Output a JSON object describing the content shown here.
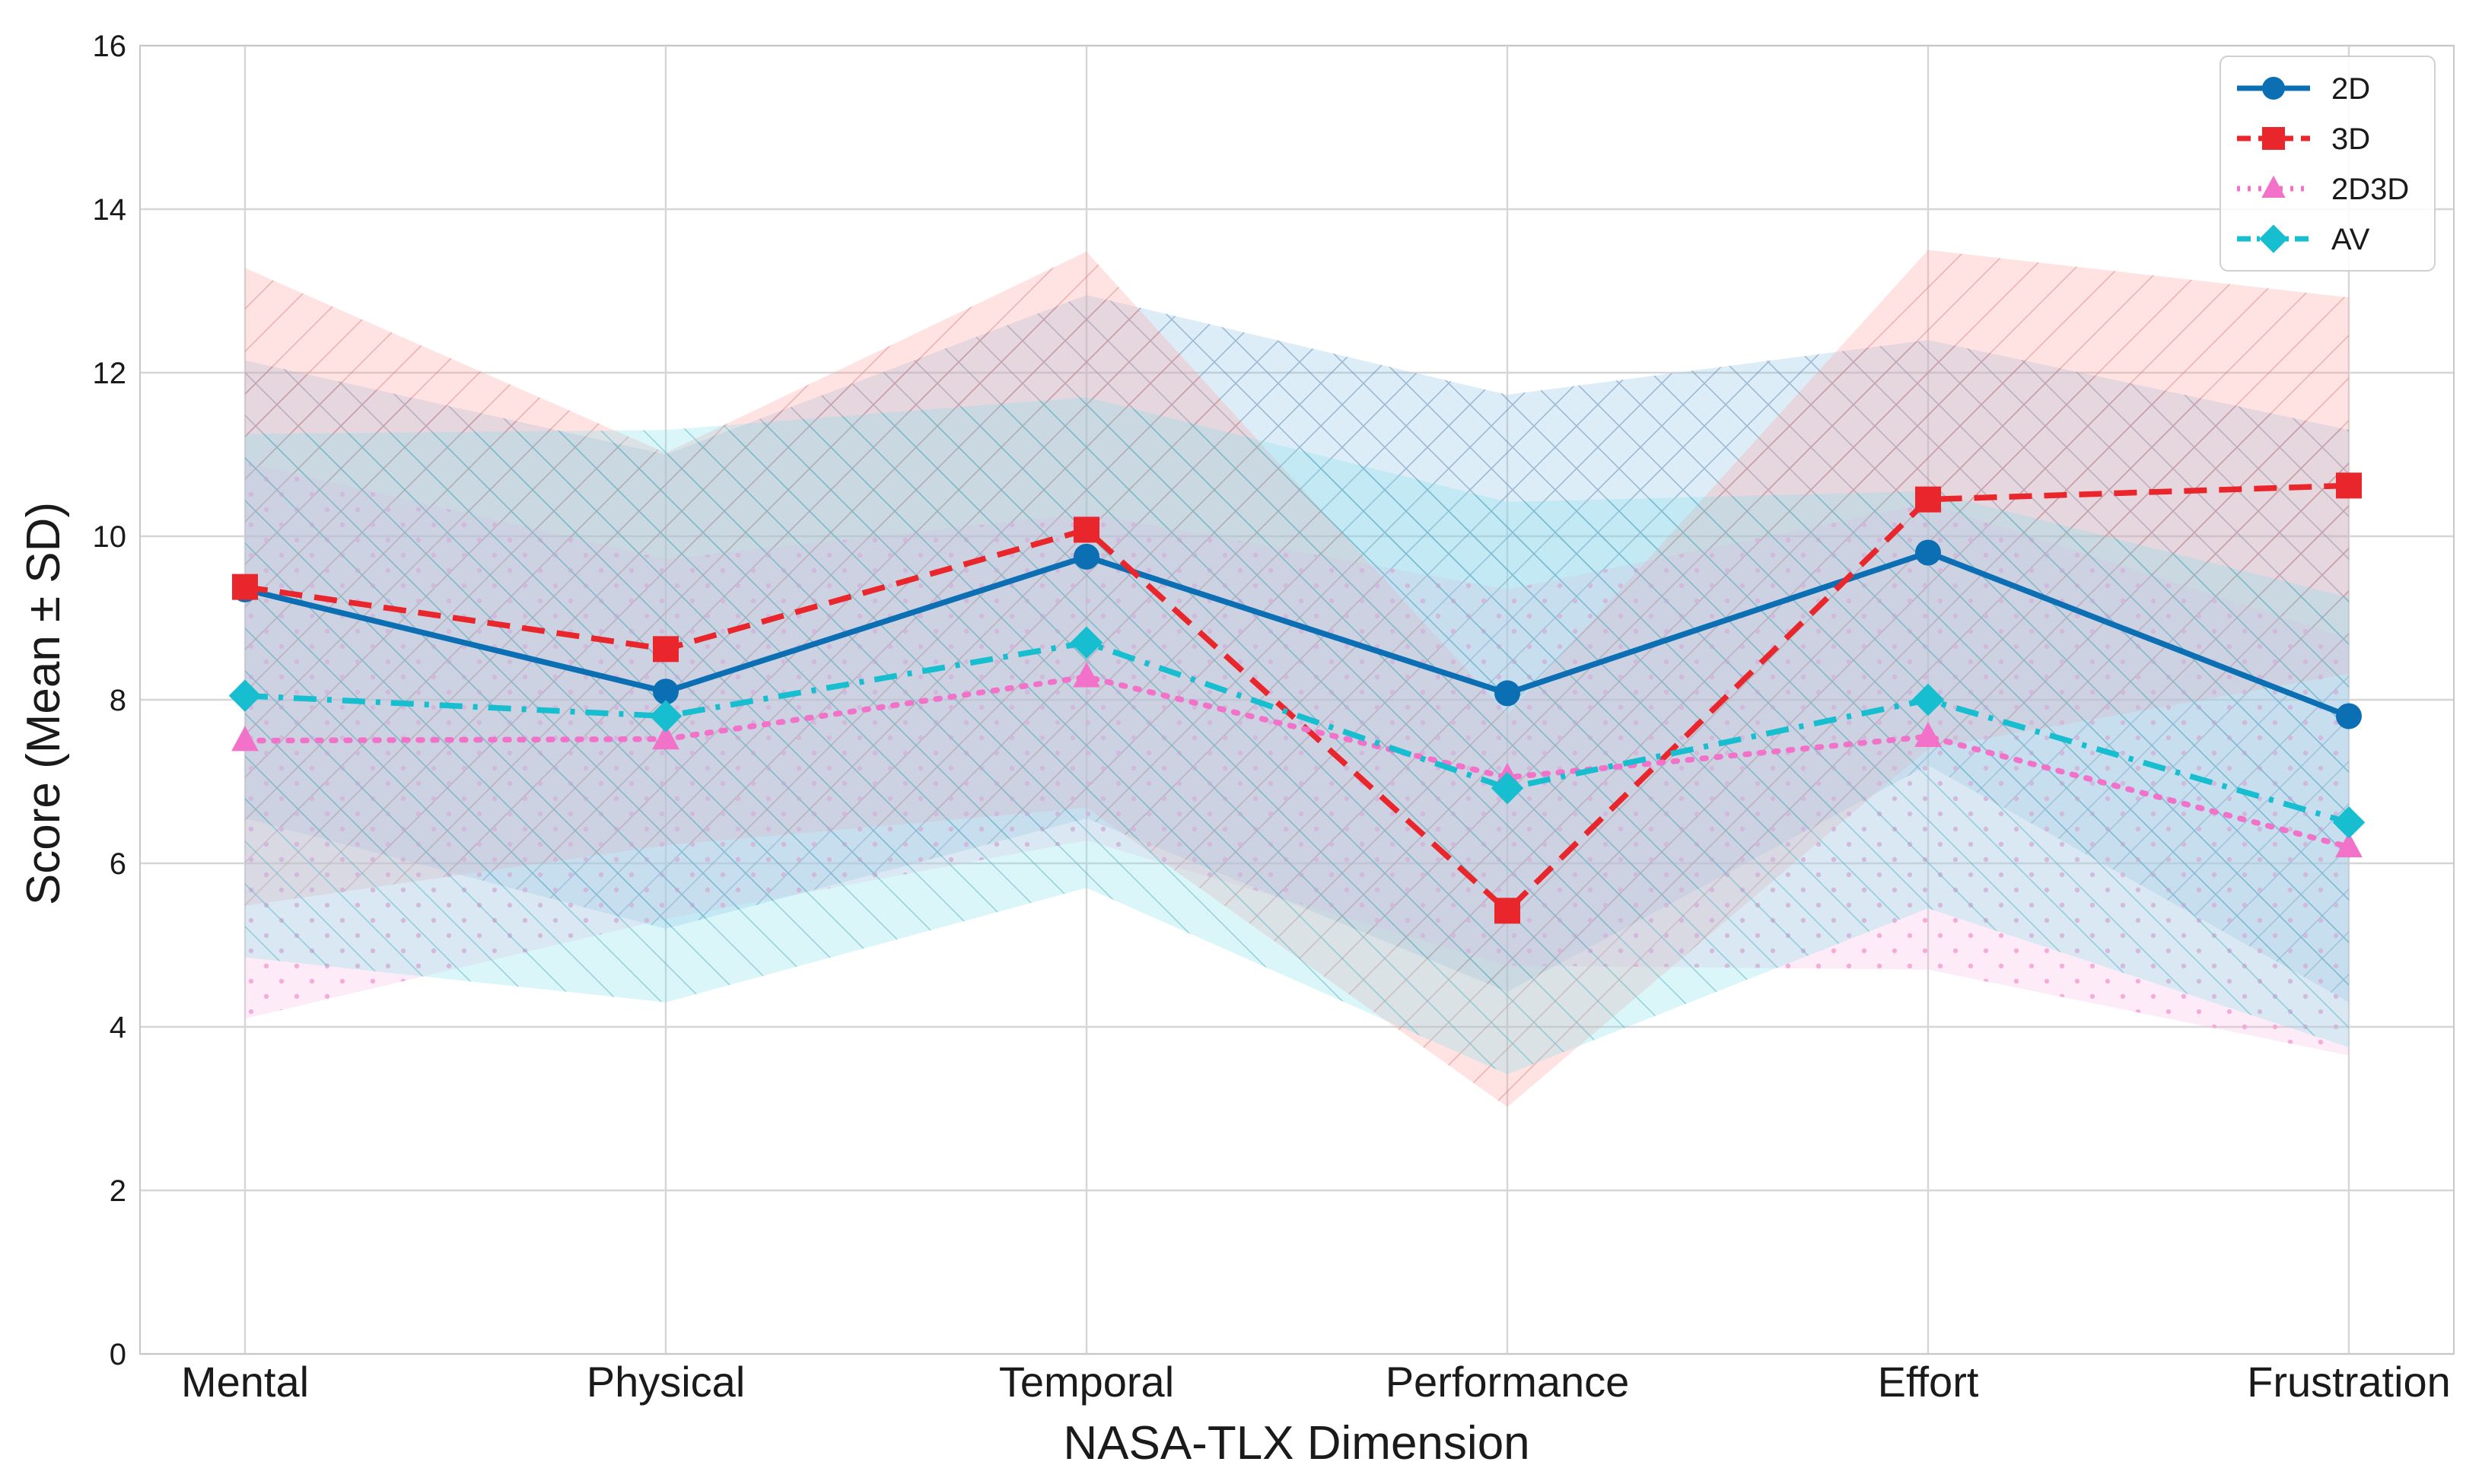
{
  "chart_data": {
    "type": "line",
    "title": "",
    "xlabel": "NASA-TLX Dimension",
    "ylabel": "Score (Mean ± SD)",
    "ylim": [
      0,
      16
    ],
    "yticks": [
      0,
      2,
      4,
      6,
      8,
      10,
      12,
      14,
      16
    ],
    "grid": true,
    "legend_position": "top-right",
    "categories": [
      "Mental",
      "Physical",
      "Temporal",
      "Performance",
      "Effort",
      "Frustration"
    ],
    "series": [
      {
        "name": "2D",
        "color": "#0c6fb3",
        "line_style": "solid",
        "marker": "circle",
        "values": [
          9.35,
          8.1,
          9.75,
          8.08,
          9.8,
          7.8
        ],
        "sd": [
          2.8,
          2.9,
          3.2,
          3.65,
          2.6,
          3.5
        ]
      },
      {
        "name": "3D",
        "color": "#e8262b",
        "line_style": "dashed",
        "marker": "square",
        "values": [
          9.38,
          8.62,
          10.08,
          5.42,
          10.45,
          10.62
        ],
        "sd": [
          3.9,
          2.4,
          3.4,
          2.4,
          3.05,
          2.3
        ]
      },
      {
        "name": "2D3D",
        "color": "#f272c9",
        "line_style": "dotted",
        "marker": "triangle",
        "values": [
          7.5,
          7.52,
          8.28,
          7.05,
          7.55,
          6.2
        ],
        "sd": [
          3.4,
          2.2,
          2.0,
          2.3,
          2.85,
          2.55
        ]
      },
      {
        "name": "AV",
        "color": "#17becf",
        "line_style": "dashdot",
        "marker": "diamond",
        "values": [
          8.05,
          7.8,
          8.7,
          6.92,
          8.0,
          6.5
        ],
        "sd": [
          3.2,
          3.5,
          3.0,
          3.5,
          2.55,
          2.75
        ]
      }
    ]
  }
}
